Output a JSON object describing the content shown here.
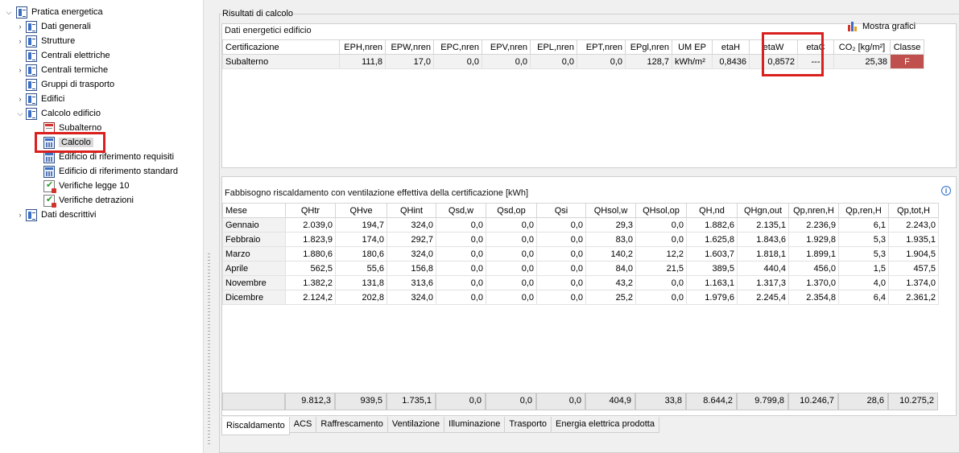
{
  "tree": {
    "root": "Pratica energetica",
    "items": [
      {
        "label": "Dati generali",
        "name": "tree-item-dati-generali"
      },
      {
        "label": "Strutture",
        "name": "tree-item-strutture"
      },
      {
        "label": "Centrali elettriche",
        "name": "tree-item-centrali-elettriche"
      },
      {
        "label": "Centrali termiche",
        "name": "tree-item-centrali-termiche"
      },
      {
        "label": "Gruppi di trasporto",
        "name": "tree-item-gruppi-trasporto"
      },
      {
        "label": "Edifici",
        "name": "tree-item-edifici"
      },
      {
        "label": "Calcolo edificio",
        "name": "tree-item-calcolo-edificio"
      },
      {
        "label": "Subalterno",
        "name": "tree-item-subalterno"
      },
      {
        "label": "Calcolo",
        "name": "tree-item-calcolo"
      },
      {
        "label": "Edificio di riferimento requisiti",
        "name": "tree-item-rif-requisiti"
      },
      {
        "label": "Edificio di riferimento standard",
        "name": "tree-item-rif-standard"
      },
      {
        "label": "Verifiche legge 10",
        "name": "tree-item-verifiche-legge-10"
      },
      {
        "label": "Verifiche detrazioni",
        "name": "tree-item-verifiche-detrazioni"
      },
      {
        "label": "Dati descrittivi",
        "name": "tree-item-dati-descrittivi"
      }
    ]
  },
  "group_title": "Risultati di calcolo",
  "energy": {
    "title": "Dati energetici edificio",
    "mostra_grafici": "Mostra grafici",
    "headers": [
      "Certificazione",
      "EPH,nren",
      "EPW,nren",
      "EPC,nren",
      "EPV,nren",
      "EPL,nren",
      "EPT,nren",
      "EPgl,nren",
      "UM EP",
      "etaH",
      "etaW",
      "etaC",
      "CO₂ [kg/m²]",
      "Classe"
    ],
    "row": [
      "Subalterno",
      "111,8",
      "17,0",
      "0,0",
      "0,0",
      "0,0",
      "0,0",
      "128,7",
      "kWh/m²",
      "0,8436",
      "0,8572",
      "---",
      "25,38",
      "F"
    ]
  },
  "fabbisogno": {
    "title": "Fabbisogno riscaldamento con ventilazione effettiva della certificazione [kWh]",
    "info_icon": "info-icon",
    "headers": [
      "Mese",
      "QHtr",
      "QHve",
      "QHint",
      "Qsd,w",
      "Qsd,op",
      "Qsi",
      "QHsol,w",
      "QHsol,op",
      "QH,nd",
      "QHgn,out",
      "Qp,nren,H",
      "Qp,ren,H",
      "Qp,tot,H"
    ],
    "rows": [
      [
        "Gennaio",
        "2.039,0",
        "194,7",
        "324,0",
        "0,0",
        "0,0",
        "0,0",
        "29,3",
        "0,0",
        "1.882,6",
        "2.135,1",
        "2.236,9",
        "6,1",
        "2.243,0"
      ],
      [
        "Febbraio",
        "1.823,9",
        "174,0",
        "292,7",
        "0,0",
        "0,0",
        "0,0",
        "83,0",
        "0,0",
        "1.625,8",
        "1.843,6",
        "1.929,8",
        "5,3",
        "1.935,1"
      ],
      [
        "Marzo",
        "1.880,6",
        "180,6",
        "324,0",
        "0,0",
        "0,0",
        "0,0",
        "140,2",
        "12,2",
        "1.603,7",
        "1.818,1",
        "1.899,1",
        "5,3",
        "1.904,5"
      ],
      [
        "Aprile",
        "562,5",
        "55,6",
        "156,8",
        "0,0",
        "0,0",
        "0,0",
        "84,0",
        "21,5",
        "389,5",
        "440,4",
        "456,0",
        "1,5",
        "457,5"
      ],
      [
        "Novembre",
        "1.382,2",
        "131,8",
        "313,6",
        "0,0",
        "0,0",
        "0,0",
        "43,2",
        "0,0",
        "1.163,1",
        "1.317,3",
        "1.370,0",
        "4,0",
        "1.374,0"
      ],
      [
        "Dicembre",
        "2.124,2",
        "202,8",
        "324,0",
        "0,0",
        "0,0",
        "0,0",
        "25,2",
        "0,0",
        "1.979,6",
        "2.245,4",
        "2.354,8",
        "6,4",
        "2.361,2"
      ]
    ],
    "totals": [
      "",
      "9.812,3",
      "939,5",
      "1.735,1",
      "0,0",
      "0,0",
      "0,0",
      "404,9",
      "33,8",
      "8.644,2",
      "9.799,8",
      "10.246,7",
      "28,6",
      "10.275,2"
    ]
  },
  "tabs": [
    "Riscaldamento",
    "ACS",
    "Raffrescamento",
    "Ventilazione",
    "Illuminazione",
    "Trasporto",
    "Energia elettrica prodotta"
  ],
  "active_tab": "Riscaldamento",
  "colors": {
    "classe_f": "#c0504d",
    "highlight": "#d9201f"
  }
}
